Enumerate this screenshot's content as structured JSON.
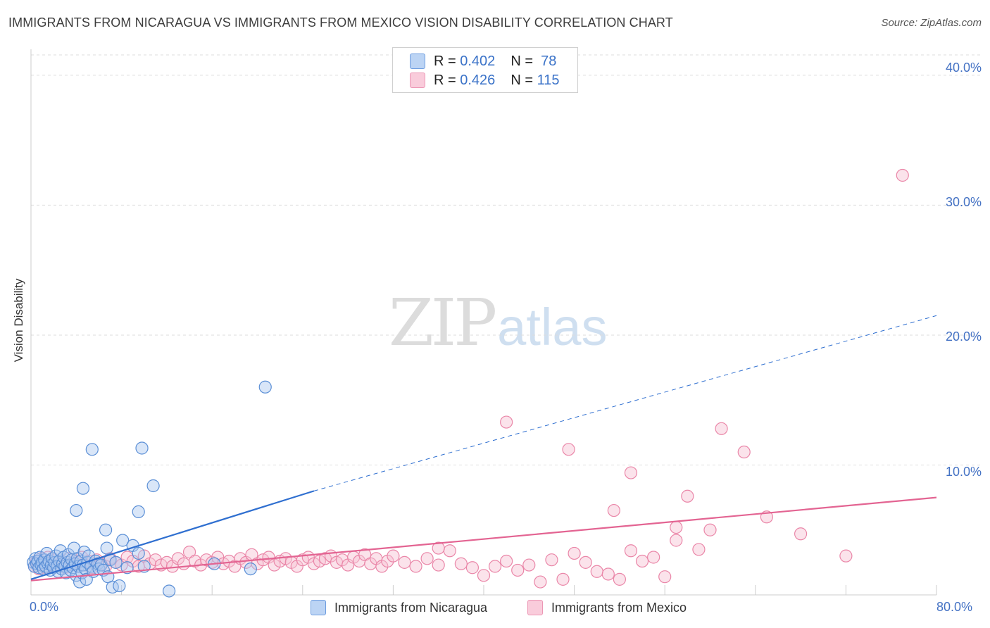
{
  "title": "IMMIGRANTS FROM NICARAGUA VS IMMIGRANTS FROM MEXICO VISION DISABILITY CORRELATION CHART",
  "source": "Source: ZipAtlas.com",
  "watermark": {
    "zip": "ZIP",
    "atlas": "atlas"
  },
  "legend": {
    "nicaragua": {
      "r_label": "R = ",
      "r_value": "0.402",
      "n_label": "N = ",
      "n_value": "78"
    },
    "mexico": {
      "r_label": "R = ",
      "r_value": "0.426",
      "n_label": "N = ",
      "n_value": "115"
    }
  },
  "colors": {
    "nicaragua_fill": "#aac8f0",
    "nicaragua_stroke": "#5b8fd6",
    "nicaragua_line": "#2f6fd0",
    "mexico_fill": "#f7c1d3",
    "mexico_stroke": "#ea86a8",
    "mexico_line": "#e36492",
    "grid": "#dddddd",
    "tick_text": "#4472c4"
  },
  "chart_data": {
    "type": "scatter",
    "title": "IMMIGRANTS FROM NICARAGUA VS IMMIGRANTS FROM MEXICO VISION DISABILITY CORRELATION CHART",
    "xlabel": "",
    "ylabel": "Vision Disability",
    "xlim": [
      0,
      80
    ],
    "ylim": [
      0,
      42
    ],
    "x_tick_labels": [
      "0.0%",
      "80.0%"
    ],
    "y_ticks": [
      10,
      20,
      30,
      40
    ],
    "y_tick_labels": [
      "10.0%",
      "20.0%",
      "30.0%",
      "40.0%"
    ],
    "grid": true,
    "legend_position": "top-center",
    "series": [
      {
        "name": "Immigrants from Nicaragua",
        "R": 0.402,
        "N": 78,
        "trend": {
          "x0": 0,
          "y0": 1.2,
          "x1": 25,
          "y1": 8.0,
          "dashed_to_x": 80,
          "dashed_to_y": 21.5
        },
        "points": [
          [
            0.2,
            2.5
          ],
          [
            0.3,
            2.2
          ],
          [
            0.4,
            2.8
          ],
          [
            0.5,
            2.4
          ],
          [
            0.6,
            2.6
          ],
          [
            0.7,
            2.1
          ],
          [
            0.8,
            2.9
          ],
          [
            0.9,
            2.3
          ],
          [
            1.0,
            2.5
          ],
          [
            1.1,
            2.0
          ],
          [
            1.2,
            2.7
          ],
          [
            1.3,
            2.2
          ],
          [
            1.4,
            3.2
          ],
          [
            1.5,
            2.4
          ],
          [
            1.6,
            2.6
          ],
          [
            1.7,
            1.9
          ],
          [
            1.8,
            2.3
          ],
          [
            1.9,
            2.8
          ],
          [
            2.0,
            2.1
          ],
          [
            2.1,
            2.5
          ],
          [
            2.2,
            3.0
          ],
          [
            2.3,
            2.2
          ],
          [
            2.4,
            1.8
          ],
          [
            2.5,
            2.6
          ],
          [
            2.6,
            3.4
          ],
          [
            2.7,
            2.0
          ],
          [
            2.8,
            2.4
          ],
          [
            2.9,
            2.9
          ],
          [
            3.0,
            2.2
          ],
          [
            3.1,
            1.7
          ],
          [
            3.2,
            2.5
          ],
          [
            3.3,
            3.1
          ],
          [
            3.4,
            2.3
          ],
          [
            3.5,
            1.9
          ],
          [
            3.6,
            2.7
          ],
          [
            3.7,
            2.1
          ],
          [
            3.8,
            3.6
          ],
          [
            3.9,
            2.4
          ],
          [
            4.0,
            1.5
          ],
          [
            4.1,
            2.8
          ],
          [
            4.2,
            2.2
          ],
          [
            4.3,
            1.0
          ],
          [
            4.4,
            2.6
          ],
          [
            4.5,
            1.7
          ],
          [
            4.6,
            2.3
          ],
          [
            4.7,
            3.3
          ],
          [
            4.8,
            2.0
          ],
          [
            4.9,
            1.2
          ],
          [
            5.0,
            2.5
          ],
          [
            5.1,
            3.0
          ],
          [
            5.3,
            2.2
          ],
          [
            5.5,
            1.8
          ],
          [
            5.7,
            2.6
          ],
          [
            5.9,
            2.4
          ],
          [
            6.0,
            2.0
          ],
          [
            6.2,
            2.3
          ],
          [
            6.4,
            1.9
          ],
          [
            6.6,
            5.0
          ],
          [
            6.7,
            3.6
          ],
          [
            6.8,
            1.4
          ],
          [
            7.0,
            2.7
          ],
          [
            7.2,
            0.6
          ],
          [
            7.5,
            2.5
          ],
          [
            7.8,
            0.7
          ],
          [
            8.1,
            4.2
          ],
          [
            8.5,
            2.1
          ],
          [
            9.0,
            3.8
          ],
          [
            9.5,
            3.2
          ],
          [
            10.0,
            2.2
          ],
          [
            5.4,
            11.2
          ],
          [
            9.8,
            11.3
          ],
          [
            4.6,
            8.2
          ],
          [
            10.8,
            8.4
          ],
          [
            4.0,
            6.5
          ],
          [
            9.5,
            6.4
          ],
          [
            12.2,
            0.3
          ],
          [
            16.2,
            2.4
          ],
          [
            19.4,
            2.0
          ]
        ],
        "extra_points": [
          [
            20.7,
            16.0
          ]
        ]
      },
      {
        "name": "Immigrants from Mexico",
        "R": 0.426,
        "N": 115,
        "trend": {
          "x0": 0,
          "y0": 1.1,
          "x1": 80,
          "y1": 7.5
        },
        "points": [
          [
            0.3,
            2.2
          ],
          [
            0.5,
            2.6
          ],
          [
            0.7,
            2.0
          ],
          [
            0.9,
            2.8
          ],
          [
            1.1,
            2.4
          ],
          [
            1.3,
            2.1
          ],
          [
            1.5,
            2.9
          ],
          [
            1.7,
            2.5
          ],
          [
            1.9,
            2.2
          ],
          [
            2.1,
            2.7
          ],
          [
            2.4,
            2.3
          ],
          [
            2.7,
            2.5
          ],
          [
            3.0,
            2.1
          ],
          [
            3.3,
            2.8
          ],
          [
            3.6,
            2.4
          ],
          [
            3.9,
            2.6
          ],
          [
            4.2,
            2.2
          ],
          [
            4.5,
            2.9
          ],
          [
            4.8,
            2.3
          ],
          [
            5.1,
            2.6
          ],
          [
            5.4,
            2.1
          ],
          [
            5.8,
            2.7
          ],
          [
            6.2,
            2.4
          ],
          [
            6.6,
            2.2
          ],
          [
            7.0,
            2.8
          ],
          [
            7.5,
            2.5
          ],
          [
            8.0,
            2.3
          ],
          [
            8.5,
            2.9
          ],
          [
            9.0,
            2.6
          ],
          [
            9.5,
            2.2
          ],
          [
            10.0,
            3.0
          ],
          [
            10.5,
            2.4
          ],
          [
            11.0,
            2.7
          ],
          [
            11.5,
            2.3
          ],
          [
            12.0,
            2.5
          ],
          [
            12.5,
            2.2
          ],
          [
            13.0,
            2.8
          ],
          [
            13.5,
            2.4
          ],
          [
            14.0,
            3.3
          ],
          [
            14.5,
            2.6
          ],
          [
            15.0,
            2.3
          ],
          [
            15.5,
            2.7
          ],
          [
            16.0,
            2.5
          ],
          [
            16.5,
            2.9
          ],
          [
            17.0,
            2.4
          ],
          [
            17.5,
            2.6
          ],
          [
            18.0,
            2.2
          ],
          [
            18.5,
            2.8
          ],
          [
            19.0,
            2.5
          ],
          [
            19.5,
            3.1
          ],
          [
            20.0,
            2.4
          ],
          [
            20.5,
            2.7
          ],
          [
            21.0,
            2.9
          ],
          [
            21.5,
            2.3
          ],
          [
            22.0,
            2.6
          ],
          [
            22.5,
            2.8
          ],
          [
            23.0,
            2.5
          ],
          [
            23.5,
            2.2
          ],
          [
            24.0,
            2.7
          ],
          [
            24.5,
            2.9
          ],
          [
            25.0,
            2.4
          ],
          [
            25.5,
            2.6
          ],
          [
            26.0,
            2.8
          ],
          [
            26.5,
            3.0
          ],
          [
            27.0,
            2.5
          ],
          [
            27.5,
            2.7
          ],
          [
            28.0,
            2.3
          ],
          [
            28.5,
            2.9
          ],
          [
            29.0,
            2.6
          ],
          [
            29.5,
            3.1
          ],
          [
            30.0,
            2.4
          ],
          [
            30.5,
            2.8
          ],
          [
            31.0,
            2.2
          ],
          [
            31.5,
            2.6
          ],
          [
            32.0,
            3.0
          ],
          [
            33.0,
            2.5
          ],
          [
            34.0,
            2.2
          ],
          [
            35.0,
            2.8
          ],
          [
            36.0,
            2.3
          ],
          [
            37.0,
            3.4
          ],
          [
            38.0,
            2.4
          ],
          [
            39.0,
            2.1
          ],
          [
            40.0,
            1.5
          ],
          [
            41.0,
            2.2
          ],
          [
            42.0,
            2.6
          ],
          [
            43.0,
            1.9
          ],
          [
            44.0,
            2.3
          ],
          [
            45.0,
            1.0
          ],
          [
            46.0,
            2.7
          ],
          [
            47.0,
            1.2
          ],
          [
            48.0,
            3.2
          ],
          [
            49.0,
            2.5
          ],
          [
            50.0,
            1.8
          ],
          [
            51.0,
            1.6
          ],
          [
            52.0,
            1.2
          ],
          [
            53.0,
            3.4
          ],
          [
            54.0,
            2.6
          ],
          [
            55.0,
            2.9
          ],
          [
            56.0,
            1.4
          ],
          [
            57.0,
            4.2
          ],
          [
            58.0,
            7.6
          ],
          [
            59.0,
            3.5
          ],
          [
            60.0,
            5.0
          ],
          [
            42.0,
            13.3
          ],
          [
            47.5,
            11.2
          ],
          [
            51.5,
            6.5
          ],
          [
            53.0,
            9.4
          ],
          [
            57.0,
            5.2
          ],
          [
            61.0,
            12.8
          ],
          [
            63.0,
            11.0
          ],
          [
            65.0,
            6.0
          ],
          [
            68.0,
            4.7
          ],
          [
            72.0,
            3.0
          ],
          [
            77.0,
            32.3
          ],
          [
            36.0,
            3.6
          ]
        ]
      }
    ]
  },
  "bottom_legend": {
    "nicaragua": "Immigrants from Nicaragua",
    "mexico": "Immigrants from Mexico"
  }
}
